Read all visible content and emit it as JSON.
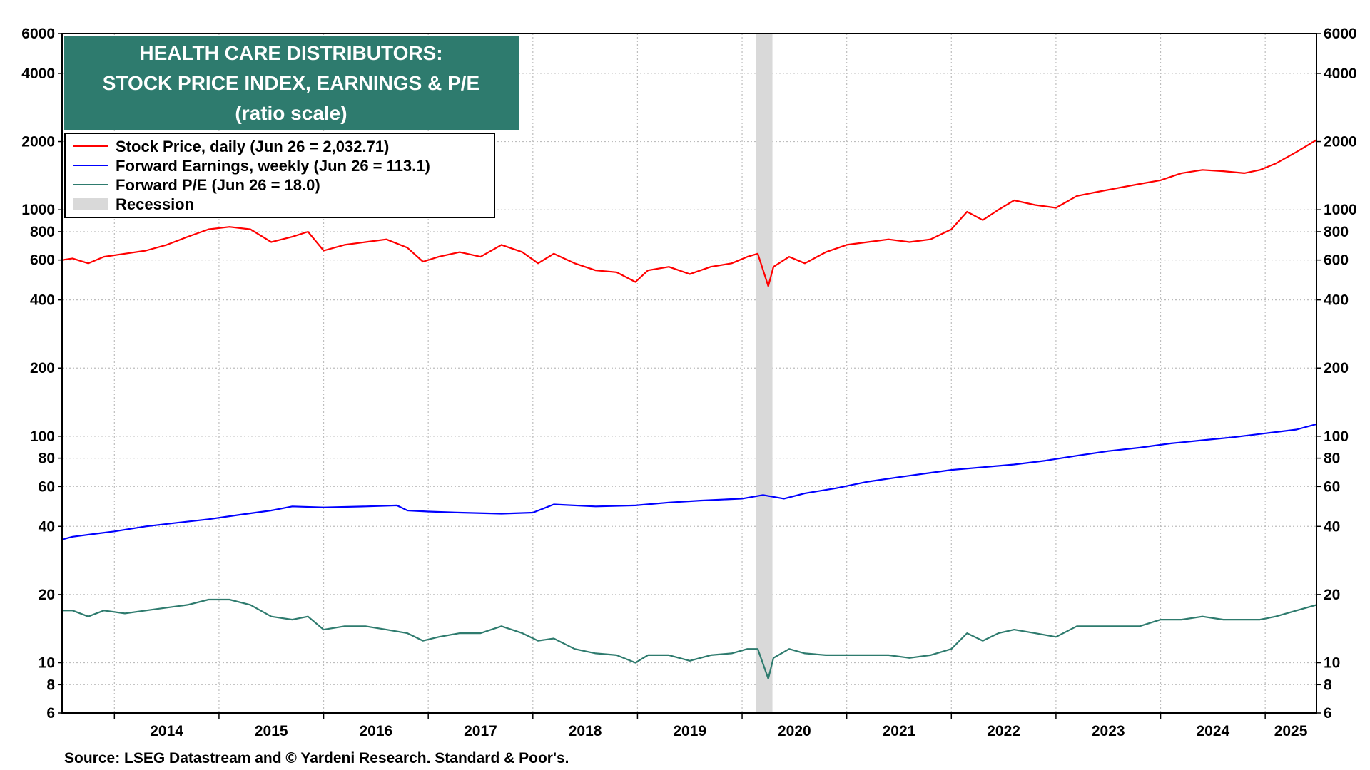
{
  "chart_data": {
    "type": "line",
    "title_lines": [
      "HEALTH CARE DISTRIBUTORS:",
      "STOCK PRICE INDEX, EARNINGS & P/E",
      "(ratio scale)"
    ],
    "y_scale": "log",
    "ylim": [
      6,
      6000
    ],
    "y_ticks": [
      6,
      8,
      10,
      20,
      40,
      60,
      80,
      100,
      200,
      400,
      600,
      800,
      1000,
      2000,
      4000,
      6000
    ],
    "x_range": [
      2013.5,
      2025.49
    ],
    "x_ticks": [
      "2014",
      "2015",
      "2016",
      "2017",
      "2018",
      "2019",
      "2020",
      "2021",
      "2022",
      "2023",
      "2024",
      "2025"
    ],
    "grid": true,
    "legend_position": "top-left",
    "recession": {
      "label": "Recession",
      "start": 2020.13,
      "end": 2020.29,
      "color": "#d9d9d9"
    },
    "series": [
      {
        "name": "Stock Price, daily (Jun 26 = 2,032.71)",
        "color": "#ff0000",
        "x": [
          2013.5,
          2013.6,
          2013.75,
          2013.9,
          2014.1,
          2014.3,
          2014.5,
          2014.7,
          2014.9,
          2015.1,
          2015.3,
          2015.5,
          2015.7,
          2015.85,
          2016.0,
          2016.2,
          2016.4,
          2016.6,
          2016.8,
          2016.95,
          2017.1,
          2017.3,
          2017.5,
          2017.7,
          2017.9,
          2018.05,
          2018.2,
          2018.4,
          2018.6,
          2018.8,
          2018.98,
          2019.1,
          2019.3,
          2019.5,
          2019.7,
          2019.9,
          2020.05,
          2020.15,
          2020.25,
          2020.3,
          2020.45,
          2020.6,
          2020.8,
          2021.0,
          2021.2,
          2021.4,
          2021.6,
          2021.8,
          2022.0,
          2022.15,
          2022.3,
          2022.45,
          2022.6,
          2022.8,
          2023.0,
          2023.2,
          2023.4,
          2023.6,
          2023.8,
          2024.0,
          2024.2,
          2024.4,
          2024.6,
          2024.8,
          2024.95,
          2025.1,
          2025.3,
          2025.49
        ],
        "values": [
          600,
          610,
          580,
          620,
          640,
          660,
          700,
          760,
          820,
          840,
          820,
          720,
          760,
          800,
          660,
          700,
          720,
          740,
          680,
          590,
          620,
          650,
          620,
          700,
          650,
          580,
          640,
          580,
          540,
          530,
          480,
          540,
          560,
          520,
          560,
          580,
          620,
          640,
          460,
          560,
          620,
          580,
          650,
          700,
          720,
          740,
          720,
          740,
          820,
          980,
          900,
          1000,
          1100,
          1050,
          1020,
          1150,
          1200,
          1250,
          1300,
          1350,
          1450,
          1500,
          1480,
          1450,
          1500,
          1600,
          1800,
          2032.71
        ]
      },
      {
        "name": "Forward Earnings, weekly (Jun 26 = 113.1)",
        "color": "#0000ff",
        "x": [
          2013.5,
          2013.6,
          2013.8,
          2014.0,
          2014.3,
          2014.6,
          2014.9,
          2015.2,
          2015.5,
          2015.7,
          2016.0,
          2016.4,
          2016.7,
          2016.8,
          2017.0,
          2017.3,
          2017.7,
          2018.0,
          2018.2,
          2018.6,
          2018.98,
          2019.3,
          2019.6,
          2020.0,
          2020.2,
          2020.4,
          2020.6,
          2020.9,
          2021.2,
          2021.5,
          2021.8,
          2022.0,
          2022.3,
          2022.6,
          2022.9,
          2023.2,
          2023.5,
          2023.8,
          2024.1,
          2024.4,
          2024.7,
          2025.0,
          2025.3,
          2025.49
        ],
        "values": [
          35,
          36,
          37,
          38,
          40,
          41.5,
          43,
          45,
          47,
          49,
          48.5,
          49,
          49.5,
          47,
          46.5,
          46,
          45.5,
          46,
          50,
          49,
          49.5,
          51,
          52,
          53,
          55,
          53,
          56,
          59,
          63,
          66,
          69,
          71,
          73,
          75,
          78,
          82,
          86,
          89,
          93,
          96,
          99,
          103,
          107,
          113.1
        ]
      },
      {
        "name": "Forward P/E (Jun 26 = 18.0)",
        "color": "#2e7b6e",
        "x": [
          2013.5,
          2013.6,
          2013.75,
          2013.9,
          2014.1,
          2014.3,
          2014.5,
          2014.7,
          2014.9,
          2015.1,
          2015.3,
          2015.5,
          2015.7,
          2015.85,
          2016.0,
          2016.2,
          2016.4,
          2016.6,
          2016.8,
          2016.95,
          2017.1,
          2017.3,
          2017.5,
          2017.7,
          2017.9,
          2018.05,
          2018.2,
          2018.4,
          2018.6,
          2018.8,
          2018.98,
          2019.1,
          2019.3,
          2019.5,
          2019.7,
          2019.9,
          2020.05,
          2020.15,
          2020.25,
          2020.3,
          2020.45,
          2020.6,
          2020.8,
          2021.0,
          2021.2,
          2021.4,
          2021.6,
          2021.8,
          2022.0,
          2022.15,
          2022.3,
          2022.45,
          2022.6,
          2022.8,
          2023.0,
          2023.2,
          2023.4,
          2023.6,
          2023.8,
          2024.0,
          2024.2,
          2024.4,
          2024.6,
          2024.8,
          2024.95,
          2025.1,
          2025.3,
          2025.49
        ],
        "values": [
          17,
          17,
          16,
          17,
          16.5,
          17,
          17.5,
          18,
          19,
          19,
          18,
          16,
          15.5,
          16,
          14,
          14.5,
          14.5,
          14,
          13.5,
          12.5,
          13,
          13.5,
          13.5,
          14.5,
          13.5,
          12.5,
          12.8,
          11.5,
          11,
          10.8,
          10,
          10.8,
          10.8,
          10.2,
          10.8,
          11,
          11.5,
          11.5,
          8.5,
          10.5,
          11.5,
          11,
          10.8,
          10.8,
          10.8,
          10.8,
          10.5,
          10.8,
          11.5,
          13.5,
          12.5,
          13.5,
          14,
          13.5,
          13,
          14.5,
          14.5,
          14.5,
          14.5,
          15.5,
          15.5,
          16,
          15.5,
          15.5,
          15.5,
          16,
          17,
          18.0
        ]
      }
    ]
  },
  "source": "Source: LSEG Datastream and © Yardeni Research. Standard & Poor's."
}
